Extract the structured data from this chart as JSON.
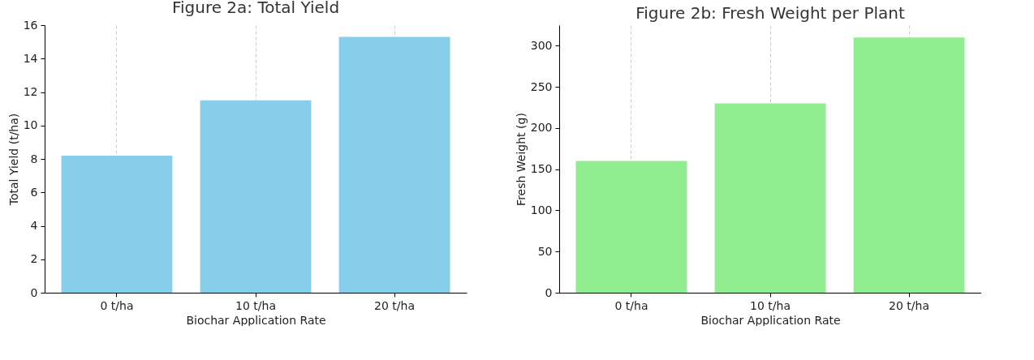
{
  "chart_data": [
    {
      "type": "bar",
      "title": "Figure 2a: Total Yield",
      "xlabel": "Biochar Application Rate",
      "ylabel": "Total Yield (t/ha)",
      "categories": [
        "0 t/ha",
        "10 t/ha",
        "20 t/ha"
      ],
      "values": [
        8.2,
        11.5,
        15.3
      ],
      "color": "#87ceeb",
      "ylim": [
        0,
        16
      ],
      "yticks": [
        0,
        2,
        4,
        6,
        8,
        10,
        12,
        14,
        16
      ],
      "grid": "x"
    },
    {
      "type": "bar",
      "title": "Figure 2b: Fresh Weight per Plant",
      "xlabel": "Biochar Application Rate",
      "ylabel": "Fresh Weight (g)",
      "categories": [
        "0 t/ha",
        "10 t/ha",
        "20 t/ha"
      ],
      "values": [
        160,
        230,
        310
      ],
      "color": "#90ee90",
      "ylim": [
        0,
        325
      ],
      "yticks": [
        0,
        50,
        100,
        150,
        200,
        250,
        300
      ],
      "grid": "x"
    }
  ]
}
